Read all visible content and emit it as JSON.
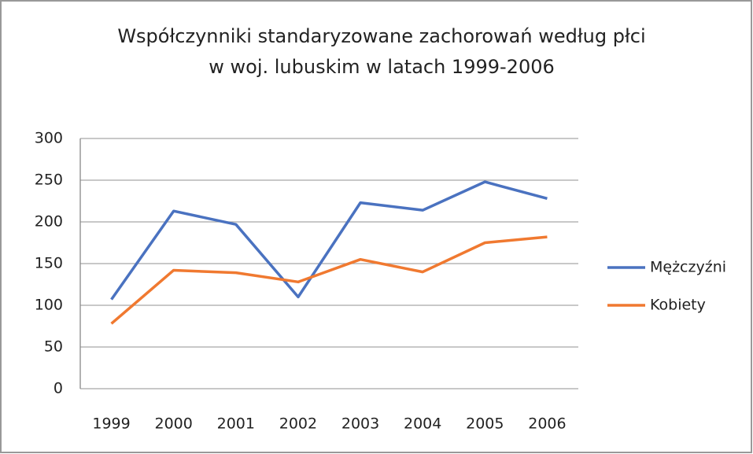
{
  "chart_data": {
    "type": "line",
    "title": [
      "Współczynniki standaryzowane zachorowań według płci",
      "w woj. lubuskim w latach 1999-2006"
    ],
    "categories": [
      "1999",
      "2000",
      "2001",
      "2002",
      "2003",
      "2004",
      "2005",
      "2006"
    ],
    "series": [
      {
        "name": "Mężczyźni",
        "color": "#4a72c0",
        "values": [
          107,
          213,
          197,
          110,
          223,
          214,
          248,
          228
        ]
      },
      {
        "name": "Kobiety",
        "color": "#f07930",
        "values": [
          78,
          142,
          139,
          128,
          155,
          140,
          175,
          182
        ]
      }
    ],
    "ylim": [
      0,
      300
    ],
    "yticks": [
      0,
      50,
      100,
      150,
      200,
      250,
      300
    ],
    "grid": true,
    "legend": "right"
  }
}
